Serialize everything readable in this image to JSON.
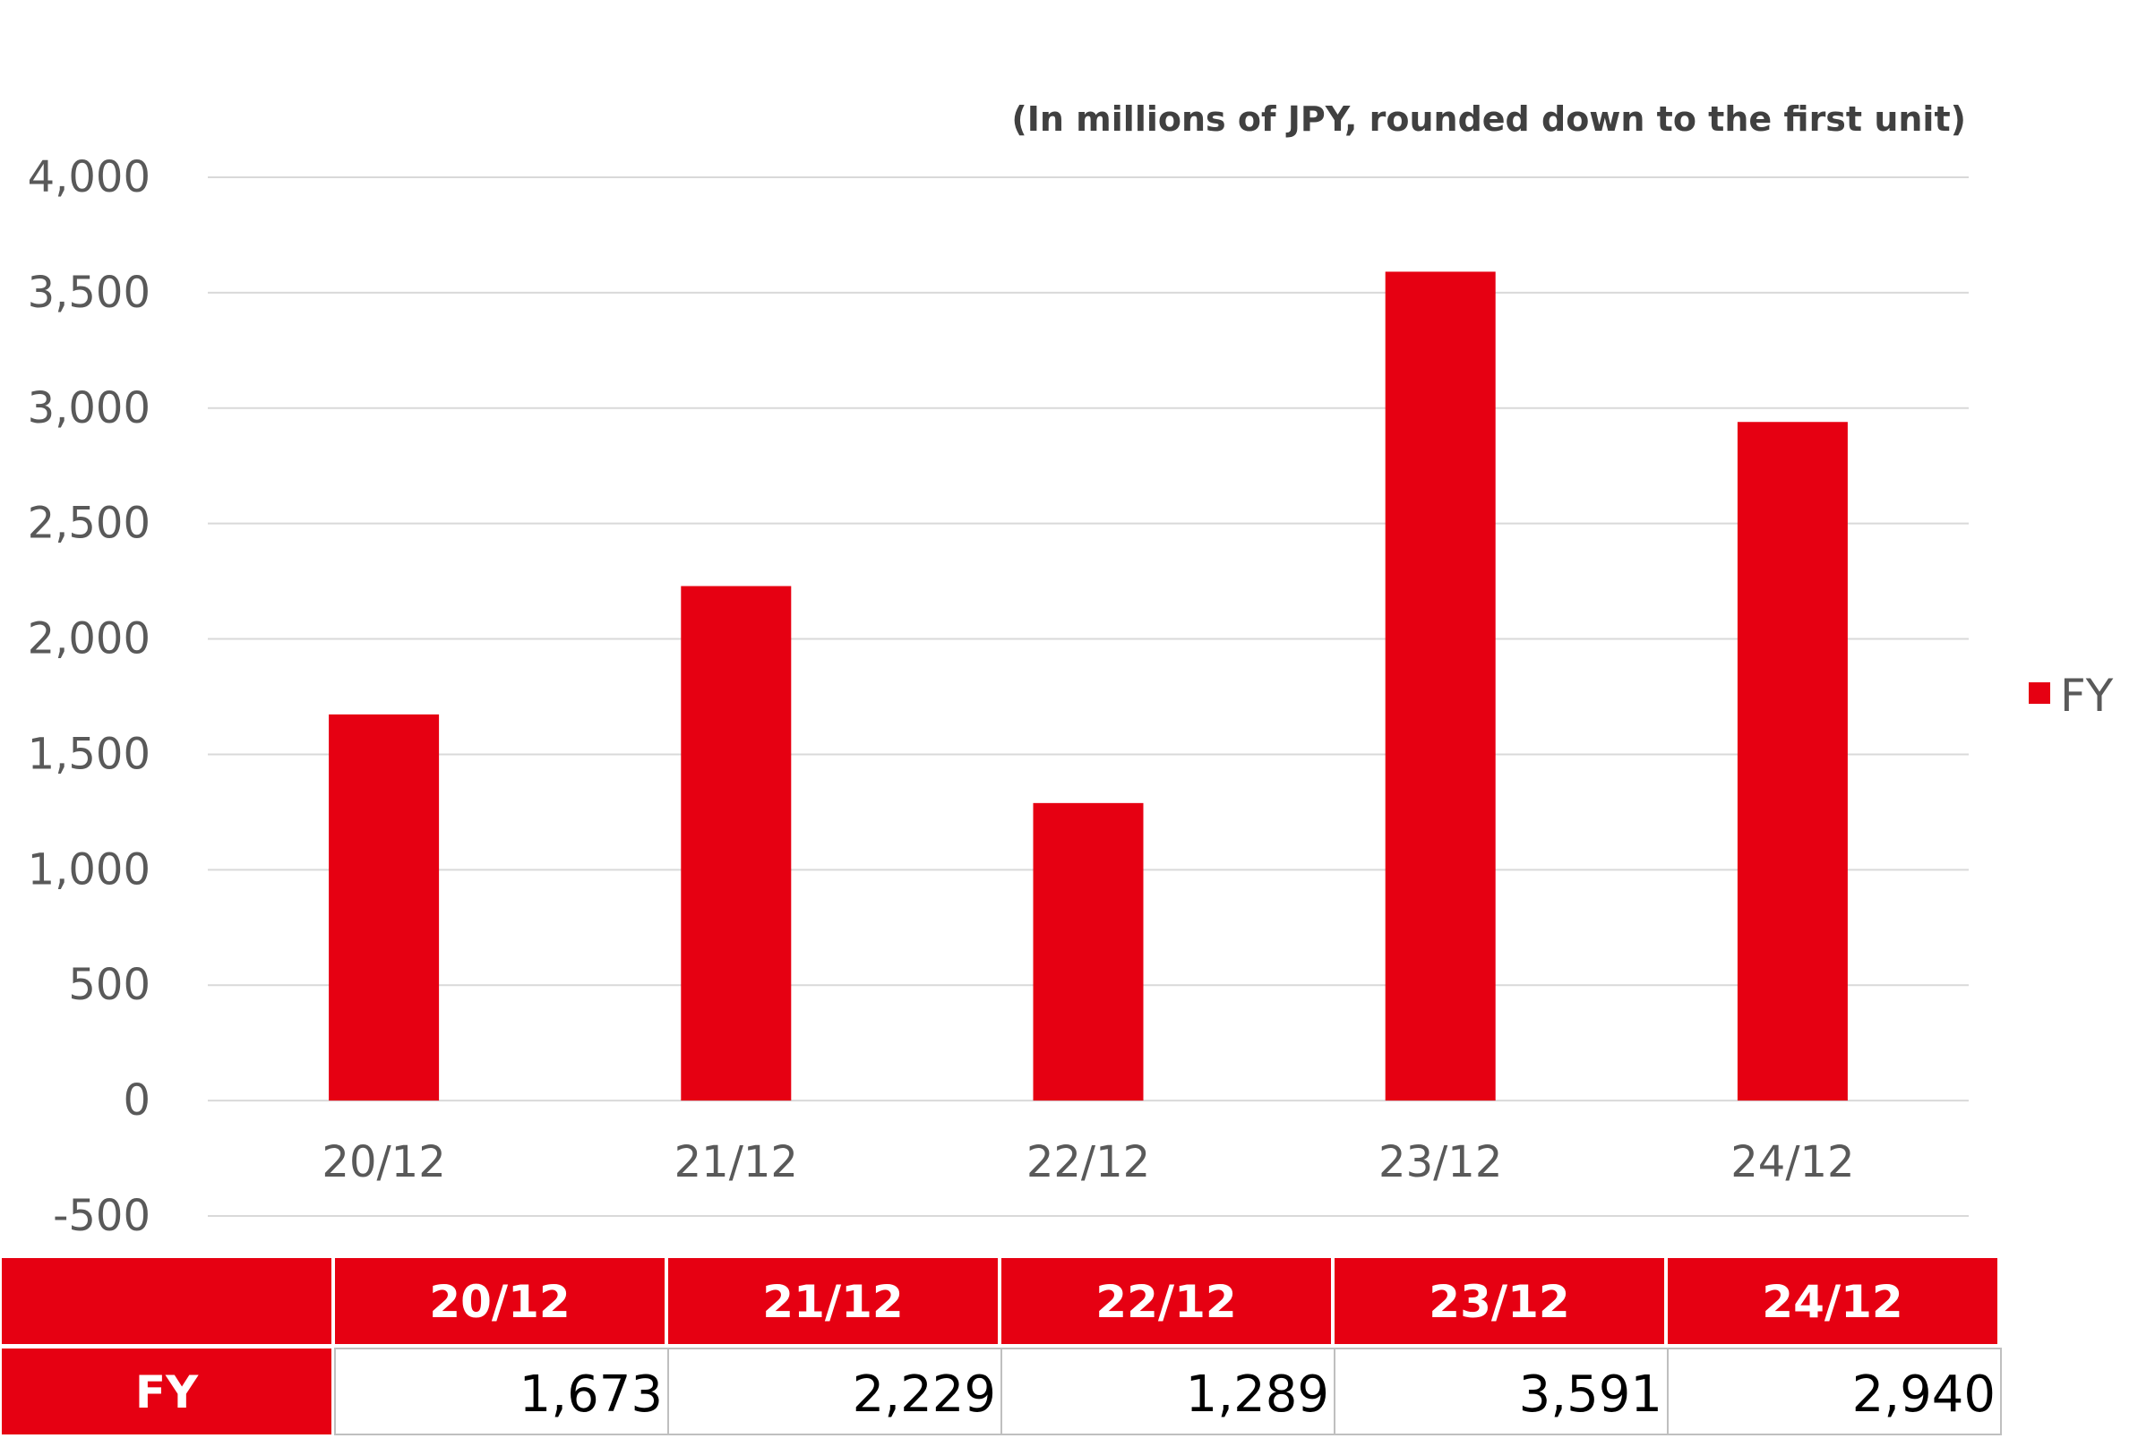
{
  "colors": {
    "accent": "#e60012",
    "grid": "#d9d9d9",
    "axis_text": "#595959",
    "table_border": "#bfbfbf"
  },
  "chart_data": {
    "type": "bar",
    "unit_note": "(In millions of JPY, rounded down to the first unit)",
    "categories": [
      "20/12",
      "21/12",
      "22/12",
      "23/12",
      "24/12"
    ],
    "series": [
      {
        "name": "FY",
        "values": [
          1673,
          2229,
          1289,
          3591,
          2940
        ],
        "color": "#e60012"
      }
    ],
    "ylim": [
      -500,
      4000
    ],
    "yticks": [
      4000,
      3500,
      3000,
      2500,
      2000,
      1500,
      1000,
      500,
      0,
      -500
    ],
    "ytick_labels": [
      "4,000",
      "3,500",
      "3,000",
      "2,500",
      "2,000",
      "1,500",
      "1,000",
      "500",
      "0",
      "-500"
    ],
    "grid": true,
    "legend_position": "right"
  },
  "table": {
    "header_blank": "",
    "columns": [
      "20/12",
      "21/12",
      "22/12",
      "23/12",
      "24/12"
    ],
    "row_label": "FY",
    "row_values": [
      "1,673",
      "2,229",
      "1,289",
      "3,591",
      "2,940"
    ]
  }
}
